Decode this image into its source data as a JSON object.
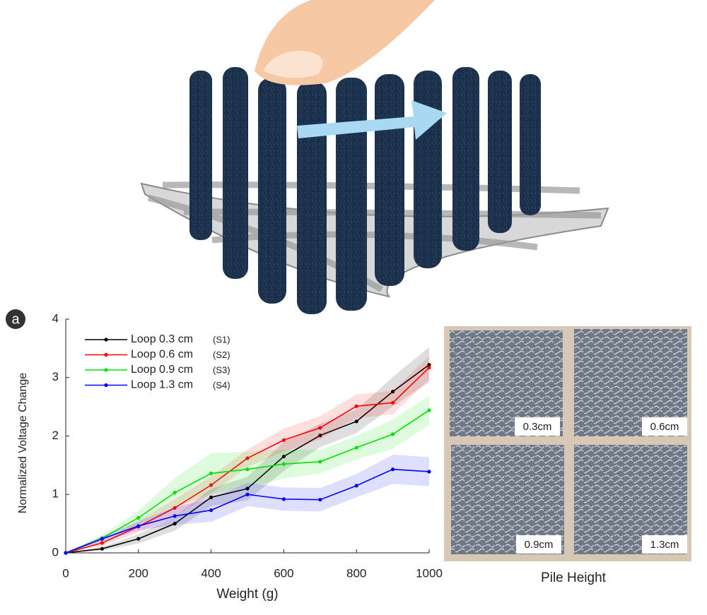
{
  "panel_label": "a",
  "chart_data": {
    "type": "line",
    "x_label": "Weight (g)",
    "y_label": "Normalized Voltage Change",
    "x": [
      0,
      100,
      200,
      300,
      400,
      500,
      600,
      700,
      800,
      900,
      1000
    ],
    "series": [
      {
        "name": "Loop 0.3 cm",
        "tag": "(S1)",
        "color": "#000000",
        "values": [
          0,
          0.07,
          0.24,
          0.5,
          0.95,
          1.1,
          1.65,
          2.01,
          2.25,
          2.76,
          3.22
        ],
        "error": [
          0,
          0.03,
          0.08,
          0.12,
          0.15,
          0.2,
          0.25,
          0.2,
          0.2,
          0.25,
          0.3
        ]
      },
      {
        "name": "Loop 0.6 cm",
        "tag": "(S2)",
        "color": "#ff0000",
        "values": [
          0,
          0.17,
          0.45,
          0.77,
          1.16,
          1.62,
          1.93,
          2.14,
          2.51,
          2.57,
          3.17
        ],
        "error": [
          0,
          0.05,
          0.1,
          0.15,
          0.15,
          0.15,
          0.2,
          0.2,
          0.2,
          0.2,
          0.2
        ]
      },
      {
        "name": "Loop 0.9 cm",
        "tag": "(S3)",
        "color": "#00e000",
        "values": [
          0,
          0.25,
          0.6,
          1.03,
          1.36,
          1.43,
          1.52,
          1.56,
          1.8,
          2.03,
          2.44
        ],
        "error": [
          0,
          0.05,
          0.12,
          0.25,
          0.35,
          0.3,
          0.25,
          0.2,
          0.2,
          0.25,
          0.25
        ]
      },
      {
        "name": "Loop 1.3 cm",
        "tag": "(S4)",
        "color": "#0000ff",
        "values": [
          0,
          0.24,
          0.46,
          0.63,
          0.73,
          1.0,
          0.92,
          0.91,
          1.15,
          1.43,
          1.39
        ],
        "error": [
          0,
          0.05,
          0.08,
          0.15,
          0.2,
          0.2,
          0.2,
          0.2,
          0.2,
          0.25,
          0.25
        ]
      }
    ],
    "xlim": [
      0,
      1000
    ],
    "xticks": [
      0,
      200,
      400,
      600,
      800,
      1000
    ],
    "ylim": [
      0,
      4
    ],
    "yticks": [
      0,
      1,
      2,
      3,
      4
    ],
    "legend": "upper left"
  },
  "photo": {
    "labels": [
      "0.3cm",
      "0.6cm",
      "0.9cm",
      "1.3cm"
    ],
    "caption": "Pile Height"
  }
}
